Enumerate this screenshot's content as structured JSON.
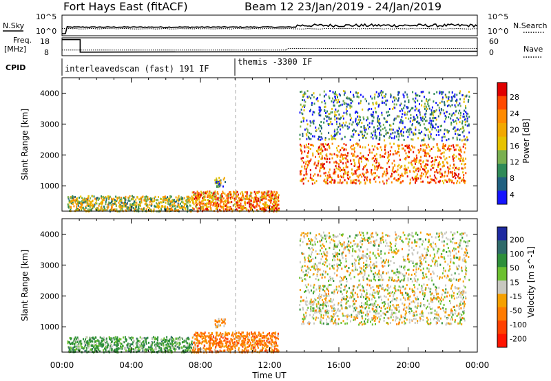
{
  "header": {
    "title": "Fort Hays East (fitACF)",
    "beam": "Beam 12",
    "date_range": "23/Jan/2019 - 24/Jan/2019"
  },
  "top_panels": {
    "nsky_label": "N.Sky",
    "nsearch_label": "N.Search",
    "nsky_ticks": [
      "10^5",
      "10^0"
    ],
    "nsearch_ticks": [
      "10^5",
      "10^0"
    ],
    "freq_label": "Freq.",
    "freq_unit": "[MHz]",
    "freq_ticks": [
      "18",
      "8"
    ],
    "nave_label": "Nave",
    "nave_ticks": [
      "60",
      "0"
    ],
    "cpid_label": "CPID",
    "cpid_segments": [
      {
        "start_hour": 0,
        "end_hour": 10,
        "label": "interleavedscan (fast) 191 IF"
      },
      {
        "start_hour": 10,
        "end_hour": 24,
        "label": "themis -3300 IF"
      }
    ]
  },
  "power_panel": {
    "ylabel": "Slant Range [km]",
    "colorbar_label": "Power [dB]",
    "colorbar_ticks": [
      "28",
      "24",
      "20",
      "16",
      "12",
      "8",
      "4"
    ],
    "colors": [
      "#e00000",
      "#ff4a00",
      "#ff8a00",
      "#f2a800",
      "#e6c200",
      "#7ab050",
      "#2f8a58",
      "#206080",
      "#1414ff"
    ]
  },
  "velocity_panel": {
    "ylabel": "Slant Range [km]",
    "colorbar_label": "Velocity [m s^-1]",
    "colorbar_ticks": [
      "200",
      "100",
      "50",
      "15",
      "-15",
      "-50",
      "-100",
      "-200"
    ],
    "colors": [
      "#1e2aa0",
      "#2f6a6a",
      "#2e8f3a",
      "#6cc030",
      "#c8c8c0",
      "#f5a000",
      "#ff7a00",
      "#ff4000",
      "#ff1400"
    ]
  },
  "x_axis": {
    "label": "Time UT",
    "ticks": [
      "00:00",
      "04:00",
      "08:00",
      "12:00",
      "16:00",
      "20:00",
      "00:00"
    ]
  },
  "chart_data": {
    "type": "heatmap",
    "title": "Fort Hays East (fitACF)",
    "subtitle": "Beam 12 23/Jan/2019 - 24/Jan/2019",
    "xlabel": "Time UT",
    "xlim": [
      0,
      24
    ],
    "x_ticks": [
      "00:00",
      "04:00",
      "08:00",
      "12:00",
      "16:00",
      "20:00",
      "00:00"
    ],
    "panels": [
      {
        "name": "Power",
        "ylabel": "Slant Range [km]",
        "ylim": [
          180,
          4500
        ],
        "y_ticks": [
          1000,
          2000,
          3000,
          4000
        ],
        "colorbar_label": "Power [dB]",
        "colorbar_range": [
          0,
          30
        ],
        "scatter_regions": [
          {
            "x": [
              0.3,
              7.5
            ],
            "y": [
              200,
              700
            ],
            "value": 14
          },
          {
            "x": [
              7.5,
              12.5
            ],
            "y": [
              200,
              850
            ],
            "value": 22
          },
          {
            "x": [
              8.8,
              9.4
            ],
            "y": [
              1000,
              1300
            ],
            "value": 10
          },
          {
            "x": [
              13.7,
              23.3
            ],
            "y": [
              1100,
              2400
            ],
            "value": 24
          },
          {
            "x": [
              13.7,
              23.5
            ],
            "y": [
              2500,
              4100
            ],
            "value": 6
          }
        ]
      },
      {
        "name": "Velocity",
        "ylabel": "Slant Range [km]",
        "ylim": [
          180,
          4500
        ],
        "y_ticks": [
          1000,
          2000,
          3000,
          4000
        ],
        "colorbar_label": "Velocity [m s^-1]",
        "colorbar_range": [
          -200,
          200
        ],
        "scatter_regions": [
          {
            "x": [
              0.3,
              7.5
            ],
            "y": [
              200,
              700
            ],
            "value": 40
          },
          {
            "x": [
              7.5,
              12.5
            ],
            "y": [
              200,
              850
            ],
            "value": -50
          },
          {
            "x": [
              8.8,
              9.4
            ],
            "y": [
              1000,
              1300
            ],
            "value": -30
          },
          {
            "x": [
              13.7,
              23.3
            ],
            "y": [
              1100,
              2400
            ],
            "value": 0
          },
          {
            "x": [
              13.7,
              23.5
            ],
            "y": [
              2500,
              4100
            ],
            "value": 0
          }
        ]
      }
    ],
    "nsky": {
      "ylim": [
        0,
        5
      ],
      "log": true
    },
    "freq_mhz": {
      "ylim": [
        8,
        18
      ]
    },
    "nave": {
      "ylim": [
        0,
        60
      ]
    }
  }
}
